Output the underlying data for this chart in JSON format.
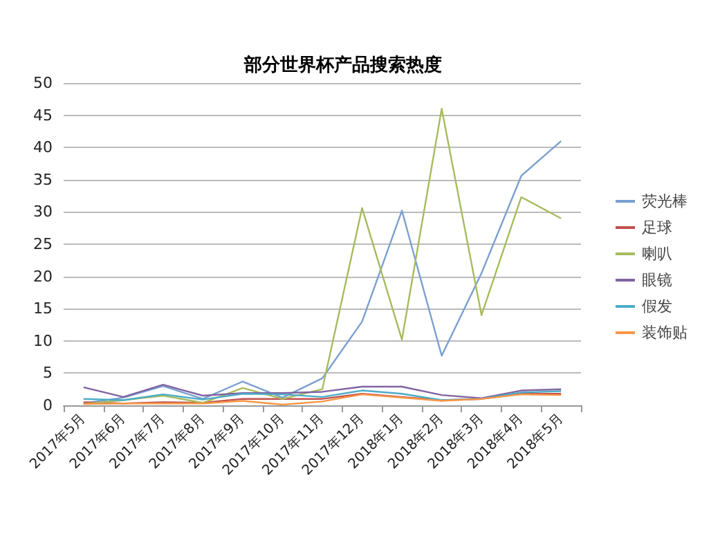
{
  "chart_data": {
    "type": "line",
    "title": "部分世界杯产品搜索热度",
    "categories": [
      "2017年5月",
      "2017年6月",
      "2017年7月",
      "2017年8月",
      "2017年9月",
      "2017年10月",
      "2017年11月",
      "2017年12月",
      "2018年1月",
      "2018年2月",
      "2018年3月",
      "2018年4月",
      "2018年5月"
    ],
    "series": [
      {
        "name": "荧光棒",
        "color": "#7a9fd0",
        "values": [
          0.3,
          1.2,
          3,
          1,
          3.7,
          1.2,
          4.2,
          13,
          30.2,
          7.7,
          20.5,
          35.6,
          41
        ]
      },
      {
        "name": "足球",
        "color": "#c0504d",
        "values": [
          0.5,
          0.3,
          0.5,
          0.4,
          1,
          1,
          1,
          1.8,
          1.3,
          0.8,
          1,
          1.8,
          1.8
        ]
      },
      {
        "name": "喇叭",
        "color": "#a6bb5e",
        "values": [
          0.2,
          0.8,
          1.5,
          0.4,
          2.7,
          1,
          2.5,
          30.6,
          10.2,
          46,
          14,
          32.3,
          29
        ]
      },
      {
        "name": "眼镜",
        "color": "#8064a2",
        "values": [
          2.8,
          1.3,
          3.2,
          1.5,
          1.9,
          1.9,
          2.1,
          2.9,
          2.9,
          1.6,
          1.1,
          2.3,
          2.5
        ]
      },
      {
        "name": "假发",
        "color": "#4bacc6",
        "values": [
          1,
          0.8,
          1.7,
          0.9,
          1.8,
          1.7,
          1.3,
          2.3,
          1.8,
          0.8,
          1,
          2,
          2.2
        ]
      },
      {
        "name": "装饰贴",
        "color": "#f79646",
        "values": [
          0.2,
          0.3,
          0.3,
          0.3,
          0.7,
          0.1,
          0.6,
          1.7,
          1.2,
          0.7,
          1,
          1.7,
          1.6
        ]
      }
    ],
    "ylim": [
      0,
      50
    ],
    "yticks": [
      0,
      5,
      10,
      15,
      20,
      25,
      30,
      35,
      40,
      45,
      50
    ],
    "grid": "y",
    "legend": "right",
    "marker": "none",
    "line_style": "solid"
  }
}
